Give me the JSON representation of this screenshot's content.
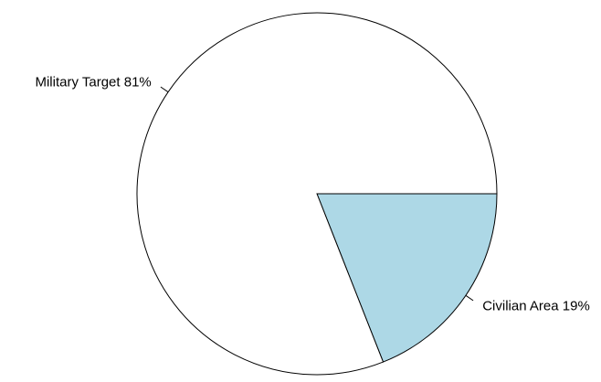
{
  "chart_data": {
    "type": "pie",
    "title": "",
    "slices": [
      {
        "name": "Civilian Area",
        "label": "Civilian Area 19%",
        "value": 19,
        "color": "#add8e6"
      },
      {
        "name": "Military Target",
        "label": "Military Target 81%",
        "value": 81,
        "color": "#ffffff"
      }
    ],
    "start_angle_deg": 0,
    "direction": "clockwise",
    "outline_color": "#000000"
  }
}
